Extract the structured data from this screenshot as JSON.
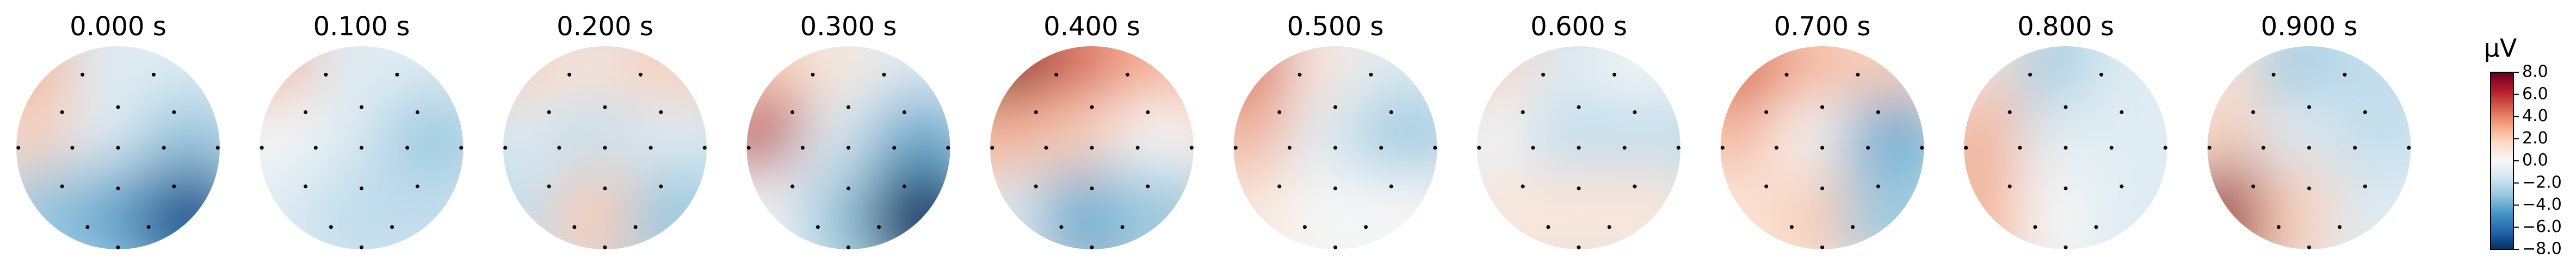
{
  "chart_data": {
    "type": "topomap",
    "titles": [
      "0.000 s",
      "0.100 s",
      "0.200 s",
      "0.300 s",
      "0.400 s",
      "0.500 s",
      "0.600 s",
      "0.700 s",
      "0.800 s",
      "0.900 s"
    ],
    "maps": [
      [
        [
          3,
          -1,
          -1
        ],
        [
          2,
          -1,
          -3
        ],
        [
          -3,
          -4,
          -7
        ]
      ],
      [
        [
          3,
          -1,
          -1
        ],
        [
          0,
          -1,
          -3
        ],
        [
          -1,
          -2,
          -2
        ]
      ],
      [
        [
          2,
          1,
          2
        ],
        [
          -1,
          -2,
          -1
        ],
        [
          -2,
          2,
          -3
        ]
      ],
      [
        [
          2,
          1,
          -1
        ],
        [
          6,
          -1,
          -4
        ],
        [
          0,
          -3,
          -8
        ]
      ],
      [
        [
          8,
          5,
          3
        ],
        [
          3,
          2,
          0
        ],
        [
          -1,
          -4,
          -3
        ]
      ],
      [
        [
          5,
          1,
          -1
        ],
        [
          3,
          -1,
          -3
        ],
        [
          1,
          0,
          0
        ]
      ],
      [
        [
          2,
          -1,
          0
        ],
        [
          0,
          -2,
          -2
        ],
        [
          1,
          1,
          1
        ]
      ],
      [
        [
          5,
          3,
          2
        ],
        [
          3,
          0,
          -4
        ],
        [
          1,
          2,
          -3
        ]
      ],
      [
        [
          1,
          -3,
          -1
        ],
        [
          3,
          -1,
          -1
        ],
        [
          3,
          0,
          -1
        ]
      ],
      [
        [
          1,
          -3,
          -2
        ],
        [
          2,
          -1,
          -2
        ],
        [
          7,
          2,
          -1
        ]
      ]
    ],
    "colorbar_label": "µV",
    "clim": [
      -8,
      8
    ],
    "ticks": [
      {
        "value": 8,
        "label": "8.0"
      },
      {
        "value": 6,
        "label": "6.0"
      },
      {
        "value": 4,
        "label": "4.0"
      },
      {
        "value": 2,
        "label": "2.0"
      },
      {
        "value": 0,
        "label": "0.0"
      },
      {
        "value": -2,
        "label": "−2.0"
      },
      {
        "value": -4,
        "label": "−4.0"
      },
      {
        "value": -6,
        "label": "−6.0"
      },
      {
        "value": -8,
        "label": "−8.0"
      }
    ],
    "colormap": [
      "#053061",
      "#2166ac",
      "#4393c3",
      "#92c5de",
      "#d1e5f0",
      "#f7f7f7",
      "#fddbc7",
      "#f4a582",
      "#d6604d",
      "#b2182b",
      "#67001f"
    ]
  }
}
